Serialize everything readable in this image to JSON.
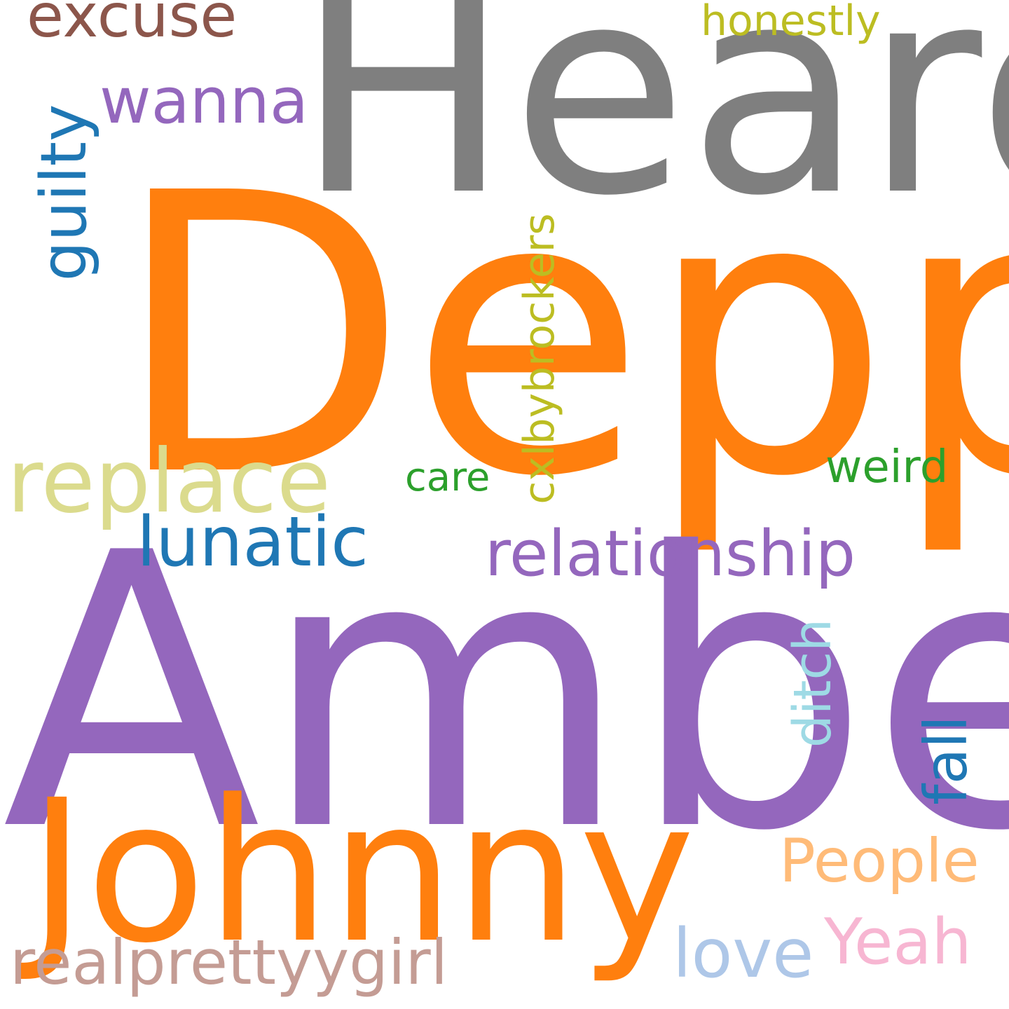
{
  "words": [
    {
      "key": "heard",
      "text": "Heard",
      "color": "#7f7f7f"
    },
    {
      "key": "depp",
      "text": "Depp",
      "color": "#ff7f0e"
    },
    {
      "key": "amber",
      "text": "Amber",
      "color": "#9467bd"
    },
    {
      "key": "johnny",
      "text": "Johnny",
      "color": "#ff7f0e"
    },
    {
      "key": "replace",
      "text": "replace",
      "color": "#dbdb8d"
    },
    {
      "key": "excuse",
      "text": "excuse",
      "color": "#8c564b"
    },
    {
      "key": "wanna",
      "text": "wanna",
      "color": "#9467bd"
    },
    {
      "key": "honestly",
      "text": "honestly",
      "color": "#bcbd22"
    },
    {
      "key": "guilty",
      "text": "guilty",
      "color": "#1f77b4"
    },
    {
      "key": "cxlby",
      "text": "cxlbybrockers",
      "color": "#bcbd22"
    },
    {
      "key": "lunatic",
      "text": "lunatic",
      "color": "#1f77b4"
    },
    {
      "key": "relationship",
      "text": "relationship",
      "color": "#9467bd"
    },
    {
      "key": "care",
      "text": "care",
      "color": "#2ca02c"
    },
    {
      "key": "weird",
      "text": "weird",
      "color": "#2ca02c"
    },
    {
      "key": "ditch",
      "text": "ditch",
      "color": "#9edae5"
    },
    {
      "key": "fall",
      "text": "fall",
      "color": "#1f77b4"
    },
    {
      "key": "people",
      "text": "People",
      "color": "#ffbb78"
    },
    {
      "key": "yeah",
      "text": "Yeah",
      "color": "#f7b6d2"
    },
    {
      "key": "love",
      "text": "love",
      "color": "#aec7e8"
    },
    {
      "key": "realpretty",
      "text": "realprettyygirl",
      "color": "#c49c94"
    }
  ]
}
